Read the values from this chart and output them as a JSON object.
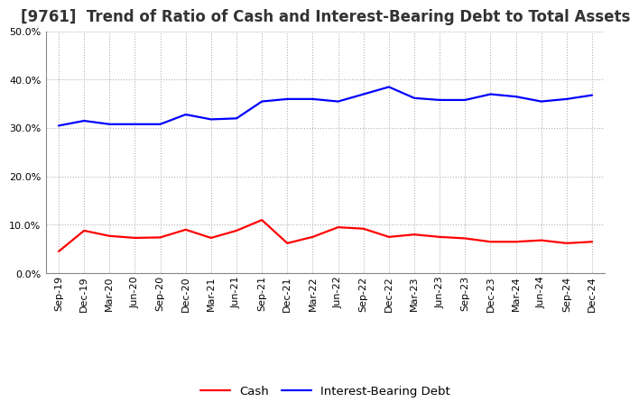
{
  "title": "[9761]  Trend of Ratio of Cash and Interest-Bearing Debt to Total Assets",
  "x_labels": [
    "Sep-19",
    "Dec-19",
    "Mar-20",
    "Jun-20",
    "Sep-20",
    "Dec-20",
    "Mar-21",
    "Jun-21",
    "Sep-21",
    "Dec-21",
    "Mar-22",
    "Jun-22",
    "Sep-22",
    "Dec-22",
    "Mar-23",
    "Jun-23",
    "Sep-23",
    "Dec-23",
    "Mar-24",
    "Jun-24",
    "Sep-24",
    "Dec-24"
  ],
  "cash": [
    4.5,
    8.8,
    7.7,
    7.3,
    7.4,
    9.0,
    7.3,
    8.8,
    11.0,
    6.2,
    7.5,
    9.5,
    9.2,
    7.5,
    8.0,
    7.5,
    7.2,
    6.5,
    6.5,
    6.8,
    6.2,
    6.5
  ],
  "ibd": [
    30.5,
    31.5,
    30.8,
    30.8,
    30.8,
    32.8,
    31.8,
    32.0,
    35.5,
    36.0,
    36.0,
    35.5,
    37.0,
    38.5,
    36.2,
    35.8,
    35.8,
    37.0,
    36.5,
    35.5,
    36.0,
    36.8
  ],
  "cash_color": "#ff0000",
  "ibd_color": "#0000ff",
  "ylim": [
    0,
    50
  ],
  "yticks": [
    0,
    10,
    20,
    30,
    40,
    50
  ],
  "background_color": "#ffffff",
  "grid_color": "#b0b0b0",
  "title_fontsize": 12,
  "tick_fontsize": 8,
  "legend_fontsize": 9.5,
  "line_width": 1.6
}
